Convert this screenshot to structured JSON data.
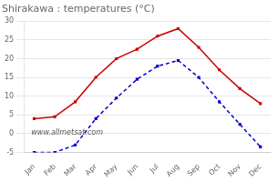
{
  "chart_data": {
    "type": "line",
    "title": "Shirakawa : temperatures (°C)",
    "categories": [
      "Jan",
      "Feb",
      "Mar",
      "Apr",
      "May",
      "Jun",
      "Jul",
      "Aug",
      "Sep",
      "Oct",
      "Nov",
      "Dec"
    ],
    "series": [
      {
        "color": "#cc0000",
        "marker": "square",
        "line_style": "solid",
        "values": [
          4,
          4.5,
          8.5,
          15,
          20,
          22.5,
          26,
          28,
          23,
          17,
          12,
          8
        ]
      },
      {
        "color": "#0000cc",
        "marker": "square",
        "line_style": "dashed",
        "values": [
          -5,
          -5,
          -3,
          4,
          9.5,
          14.5,
          18,
          19.5,
          15,
          8.5,
          2.5,
          -3.5
        ]
      }
    ],
    "ylim": [
      -5,
      30
    ],
    "yticks": [
      -5,
      0,
      5,
      10,
      15,
      20,
      25,
      30
    ],
    "grid": "y",
    "annotations": [
      "www.allmetsat.com"
    ]
  }
}
